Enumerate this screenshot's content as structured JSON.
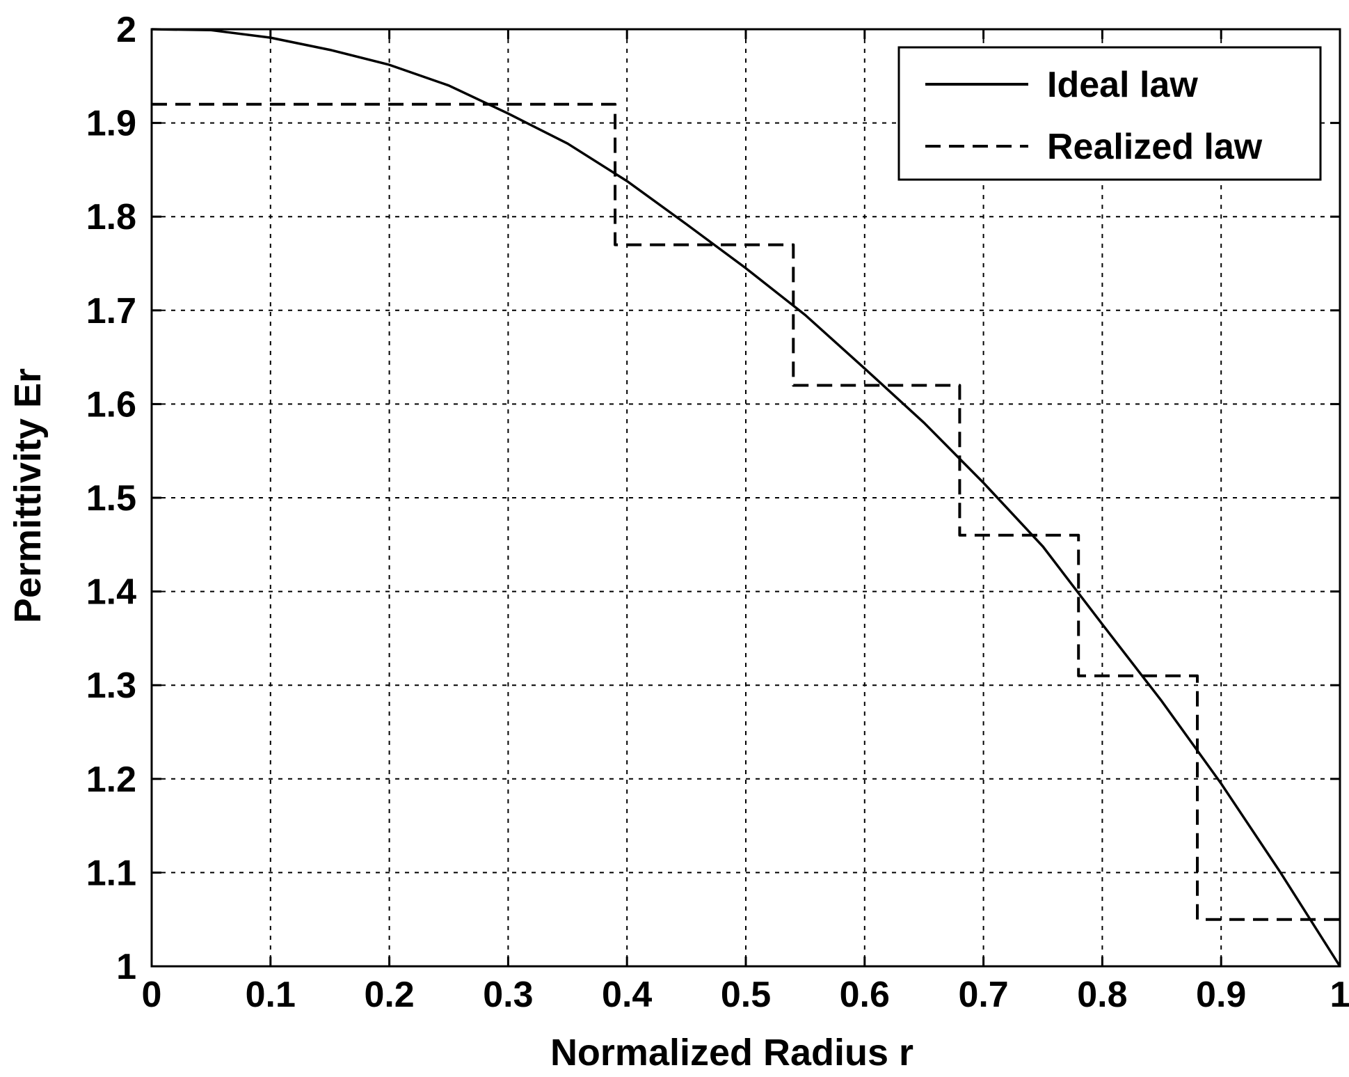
{
  "chart_data": {
    "type": "line",
    "xlabel": "Normalized Radius r",
    "ylabel": "Permittivity Er",
    "xlim": [
      0,
      1
    ],
    "ylim": [
      1,
      2
    ],
    "xticks": [
      "0",
      "0.1",
      "0.2",
      "0.3",
      "0.4",
      "0.5",
      "0.6",
      "0.7",
      "0.8",
      "0.9",
      "1"
    ],
    "yticks": [
      "1",
      "1.1",
      "1.2",
      "1.3",
      "1.4",
      "1.5",
      "1.6",
      "1.7",
      "1.8",
      "1.9",
      "2"
    ],
    "grid": true,
    "legend_position": "top-right",
    "series": [
      {
        "name": "Ideal law",
        "style": "solid",
        "color": "#000000",
        "x": [
          0,
          0.05,
          0.1,
          0.15,
          0.2,
          0.25,
          0.3,
          0.35,
          0.4,
          0.45,
          0.5,
          0.55,
          0.6,
          0.65,
          0.7,
          0.75,
          0.8,
          0.85,
          0.9,
          0.95,
          1.0
        ],
        "y": [
          2.0,
          1.999,
          1.991,
          1.978,
          1.962,
          1.94,
          1.91,
          1.878,
          1.838,
          1.792,
          1.745,
          1.695,
          1.638,
          1.58,
          1.516,
          1.448,
          1.365,
          1.283,
          1.195,
          1.1,
          1.0
        ]
      },
      {
        "name": "Realized law",
        "style": "dashed",
        "color": "#000000",
        "x": [
          0,
          0.39,
          0.39,
          0.54,
          0.54,
          0.68,
          0.68,
          0.78,
          0.78,
          0.88,
          0.88,
          1.0
        ],
        "y": [
          1.92,
          1.92,
          1.77,
          1.77,
          1.62,
          1.62,
          1.46,
          1.46,
          1.31,
          1.31,
          1.05,
          1.05
        ]
      }
    ]
  }
}
